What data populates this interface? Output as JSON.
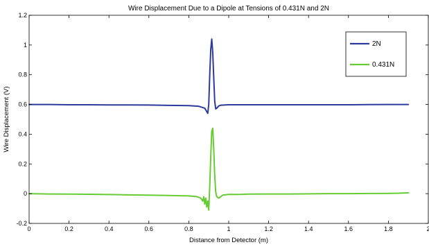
{
  "chart_data": {
    "type": "line",
    "title": "Wire Displacement Due to a Dipole at Tensions of 0.431N and 2N",
    "xlabel": "Distance from Detector (m)",
    "ylabel": "Wire Displacement (V)",
    "xlim": [
      0,
      2
    ],
    "ylim": [
      -0.2,
      1.2
    ],
    "xticks": [
      0,
      0.2,
      0.4,
      0.6,
      0.8,
      1,
      1.2,
      1.4,
      1.6,
      1.8,
      2
    ],
    "yticks": [
      -0.2,
      0,
      0.2,
      0.4,
      0.6,
      0.8,
      1,
      1.2
    ],
    "xtick_labels": [
      "0",
      "0.2",
      "0.4",
      "0.6",
      "0.8",
      "1",
      "1.2",
      "1.4",
      "1.6",
      "1.8",
      "2"
    ],
    "ytick_labels": [
      "-0.2",
      "0",
      "0.2",
      "0.4",
      "0.6",
      "0.8",
      "1",
      "1.2"
    ],
    "grid": false,
    "legend_position": "top-right",
    "series": [
      {
        "name": "2N",
        "color": "#2b3a9c",
        "x": [
          0,
          0.1,
          0.2,
          0.3,
          0.4,
          0.5,
          0.6,
          0.7,
          0.8,
          0.85,
          0.88,
          0.895,
          0.9,
          0.905,
          0.91,
          0.915,
          0.92,
          0.925,
          0.93,
          0.935,
          0.94,
          0.95,
          0.96,
          1.0,
          1.1,
          1.2,
          1.3,
          1.4,
          1.5,
          1.6,
          1.7,
          1.8,
          1.9
        ],
        "y": [
          0.6,
          0.6,
          0.598,
          0.598,
          0.597,
          0.597,
          0.596,
          0.594,
          0.592,
          0.588,
          0.575,
          0.54,
          0.6,
          0.8,
          0.97,
          1.04,
          0.95,
          0.78,
          0.62,
          0.57,
          0.575,
          0.59,
          0.595,
          0.598,
          0.598,
          0.598,
          0.598,
          0.598,
          0.598,
          0.598,
          0.599,
          0.6,
          0.6
        ]
      },
      {
        "name": "0.431N",
        "color": "#66cc33",
        "x": [
          0,
          0.1,
          0.2,
          0.3,
          0.4,
          0.5,
          0.6,
          0.7,
          0.8,
          0.84,
          0.86,
          0.87,
          0.875,
          0.88,
          0.885,
          0.89,
          0.895,
          0.9,
          0.905,
          0.91,
          0.915,
          0.92,
          0.925,
          0.93,
          0.935,
          0.94,
          0.95,
          0.96,
          0.97,
          0.98,
          1.0,
          1.05,
          1.1,
          1.2,
          1.3,
          1.4,
          1.5,
          1.6,
          1.7,
          1.8,
          1.85,
          1.9
        ],
        "y": [
          0.0,
          -0.002,
          -0.003,
          -0.004,
          -0.006,
          -0.008,
          -0.01,
          -0.012,
          -0.015,
          -0.02,
          -0.03,
          -0.05,
          -0.02,
          -0.07,
          -0.03,
          -0.09,
          -0.05,
          -0.11,
          0.05,
          0.25,
          0.42,
          0.44,
          0.3,
          0.12,
          0.01,
          -0.02,
          -0.03,
          -0.02,
          -0.01,
          -0.008,
          -0.005,
          -0.005,
          -0.003,
          -0.002,
          -0.002,
          -0.001,
          0.0,
          0.0,
          0.001,
          0.002,
          0.003,
          0.006
        ]
      }
    ]
  }
}
